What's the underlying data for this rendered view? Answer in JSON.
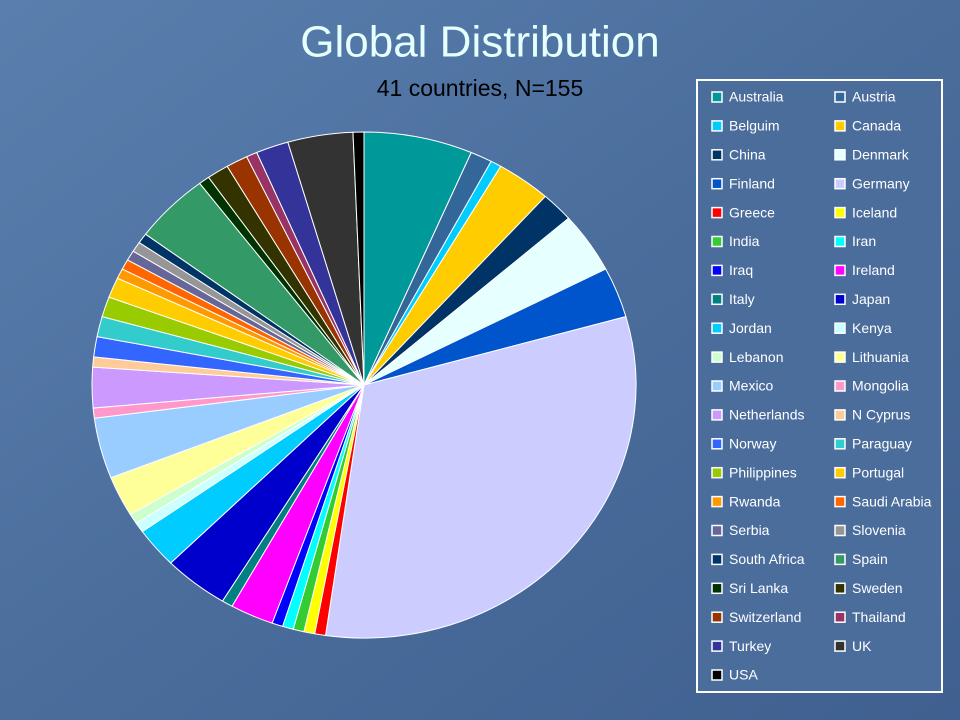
{
  "chart_data": {
    "type": "pie",
    "title": "Global Distribution",
    "subtitle": "41 countries, N=155",
    "categories": [
      "Australia",
      "Austria",
      "Belguim",
      "Canada",
      "China",
      "Denmark",
      "Finland",
      "Germany",
      "Greece",
      "Iceland",
      "India",
      "Iran",
      "Iraq",
      "Ireland",
      "Italy",
      "Japan",
      "Jordan",
      "Kenya",
      "Lebanon",
      "Lithuania",
      "Mexico",
      "Mongolia",
      "Netherlands",
      "N Cyprus",
      "Norway",
      "Paraguay",
      "Philippines",
      "Portugal",
      "Rwanda",
      "Saudi Arabia",
      "Serbia",
      "Slovenia",
      "South Africa",
      "Spain",
      "Sri Lanka",
      "Sweden",
      "Switzerland",
      "Thailand",
      "Turkey",
      "UK",
      "USA"
    ],
    "values": [
      10,
      2,
      1,
      5,
      3,
      6,
      5,
      49,
      1,
      1,
      1,
      1,
      1,
      4,
      1,
      6,
      4,
      1,
      1,
      4,
      6,
      1,
      4,
      1,
      2,
      2,
      2,
      2,
      1,
      1,
      1,
      1,
      1,
      7,
      1,
      2,
      2,
      1,
      3,
      6,
      1
    ],
    "colors": [
      "#009999",
      "#336699",
      "#00ccff",
      "#ffcc00",
      "#003366",
      "#e6ffff",
      "#0055cc",
      "#ccccff",
      "#ff0000",
      "#ffff00",
      "#33cc33",
      "#00ffff",
      "#0000ff",
      "#ff00ff",
      "#008080",
      "#0000cc",
      "#00ccff",
      "#ccffff",
      "#ccffcc",
      "#ffff99",
      "#99ccff",
      "#ff99cc",
      "#cc99ff",
      "#ffcc99",
      "#3366ff",
      "#33cccc",
      "#99cc00",
      "#ffcc00",
      "#ff9900",
      "#ff6600",
      "#666699",
      "#969696",
      "#003366",
      "#339966",
      "#003300",
      "#333300",
      "#993300",
      "#993366",
      "#333399",
      "#333333",
      "#000000"
    ]
  }
}
